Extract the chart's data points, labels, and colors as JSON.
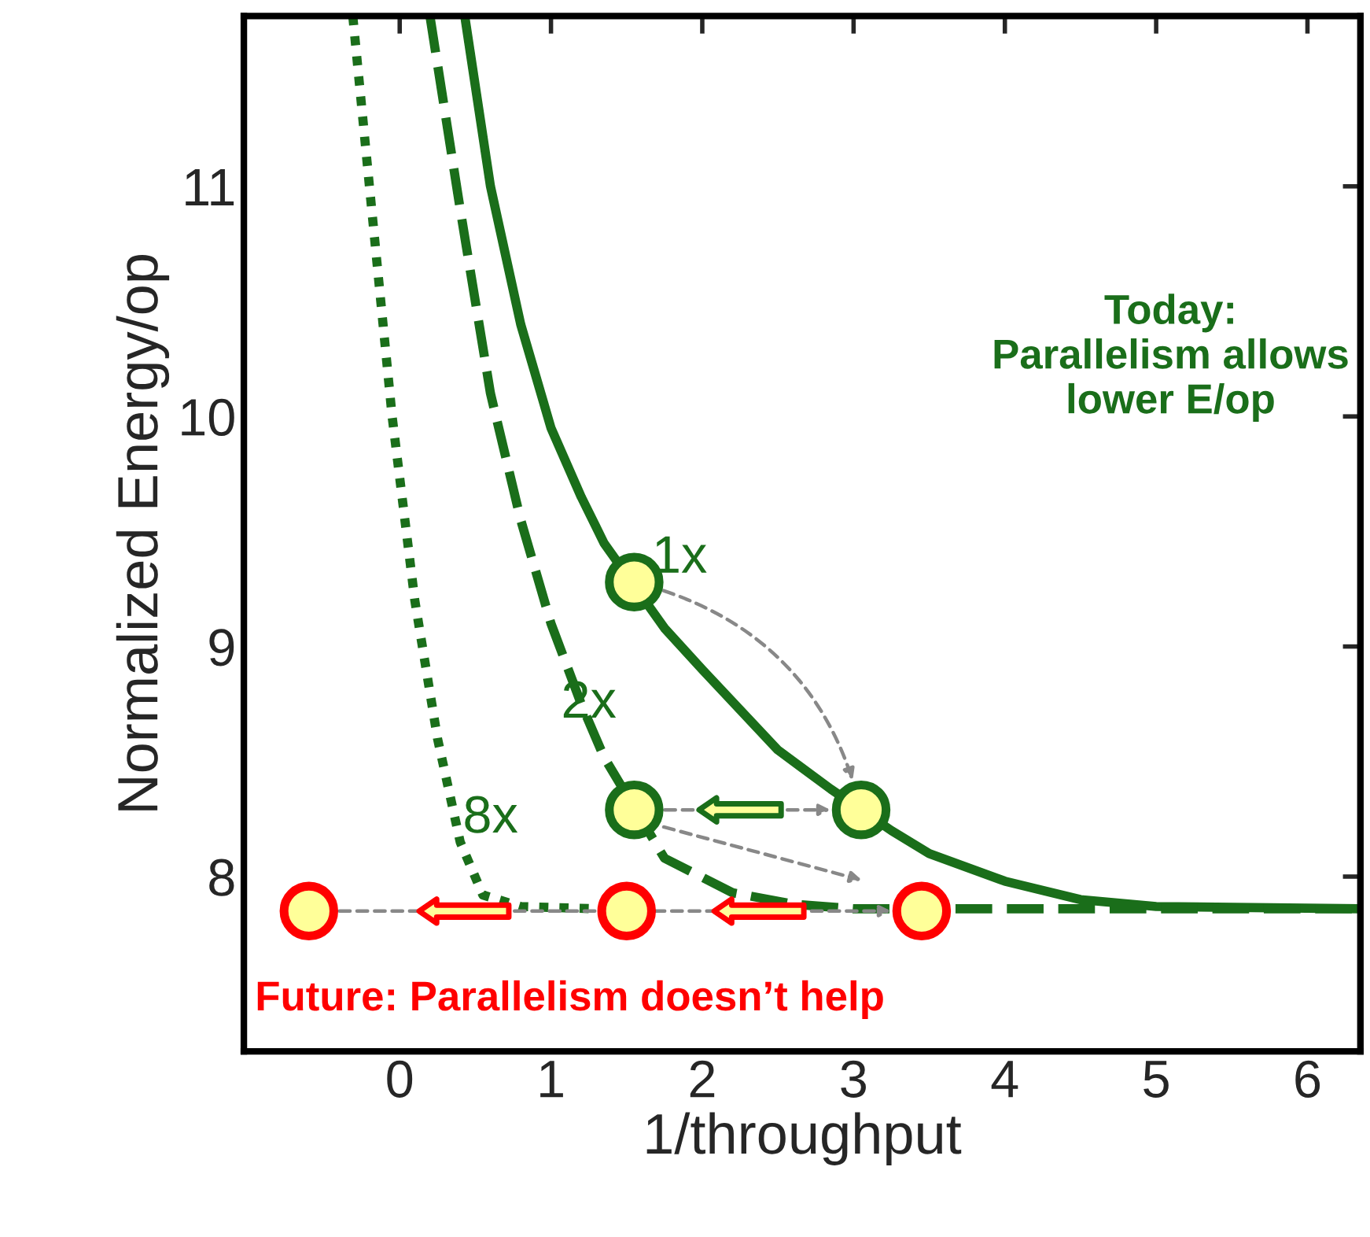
{
  "chart_data": {
    "type": "line",
    "xlabel": "1/throughput",
    "ylabel": "Normalized Energy/op",
    "xlim": [
      -1.03,
      6.35
    ],
    "ylim": [
      7.24,
      11.74
    ],
    "xticks": [
      0,
      1,
      2,
      3,
      4,
      5,
      6
    ],
    "yticks": [
      8,
      9,
      10,
      11
    ],
    "grid": false,
    "legend": false,
    "series": [
      {
        "name": "1x",
        "color": "#1a6e1a",
        "line_style": "solid",
        "x": [
          0.43,
          0.6,
          0.8,
          1.0,
          1.2,
          1.35,
          1.75,
          2.0,
          2.5,
          2.85,
          3.25,
          3.5,
          4.0,
          4.5,
          5.0,
          6.35
        ],
        "values": [
          11.74,
          11.0,
          10.4,
          9.95,
          9.65,
          9.45,
          9.08,
          8.9,
          8.55,
          8.38,
          8.2,
          8.1,
          7.98,
          7.9,
          7.87,
          7.86
        ]
      },
      {
        "name": "2x",
        "color": "#1a6e1a",
        "line_style": "dashed",
        "x": [
          0.2,
          0.4,
          0.6,
          0.8,
          1.0,
          1.2,
          1.35,
          1.75,
          2.2,
          2.6,
          3.0,
          6.35
        ],
        "values": [
          11.74,
          10.9,
          10.1,
          9.55,
          9.1,
          8.75,
          8.52,
          8.08,
          7.93,
          7.88,
          7.86,
          7.86
        ]
      },
      {
        "name": "8x",
        "color": "#1a6e1a",
        "line_style": "dotted",
        "x": [
          -0.31,
          -0.2,
          -0.05,
          0.1,
          0.25,
          0.4,
          0.55,
          0.8,
          1.3
        ],
        "values": [
          11.74,
          11.0,
          10.0,
          9.2,
          8.6,
          8.15,
          7.92,
          7.87,
          7.86
        ]
      },
      {
        "type": "scatter",
        "marker": "circle",
        "color": "#1a6e1a",
        "x": [
          1.55,
          1.55,
          3.05
        ],
        "values": [
          9.28,
          8.29,
          8.29
        ]
      },
      {
        "type": "scatter",
        "marker": "circle",
        "color": "#ff0000",
        "x": [
          -0.6,
          1.5,
          3.45
        ],
        "values": [
          7.85,
          7.85,
          7.85
        ]
      }
    ],
    "annotations": [
      "Today: Parallelism allows lower E/op",
      "Future: Parallelism doesn’t help"
    ]
  }
}
